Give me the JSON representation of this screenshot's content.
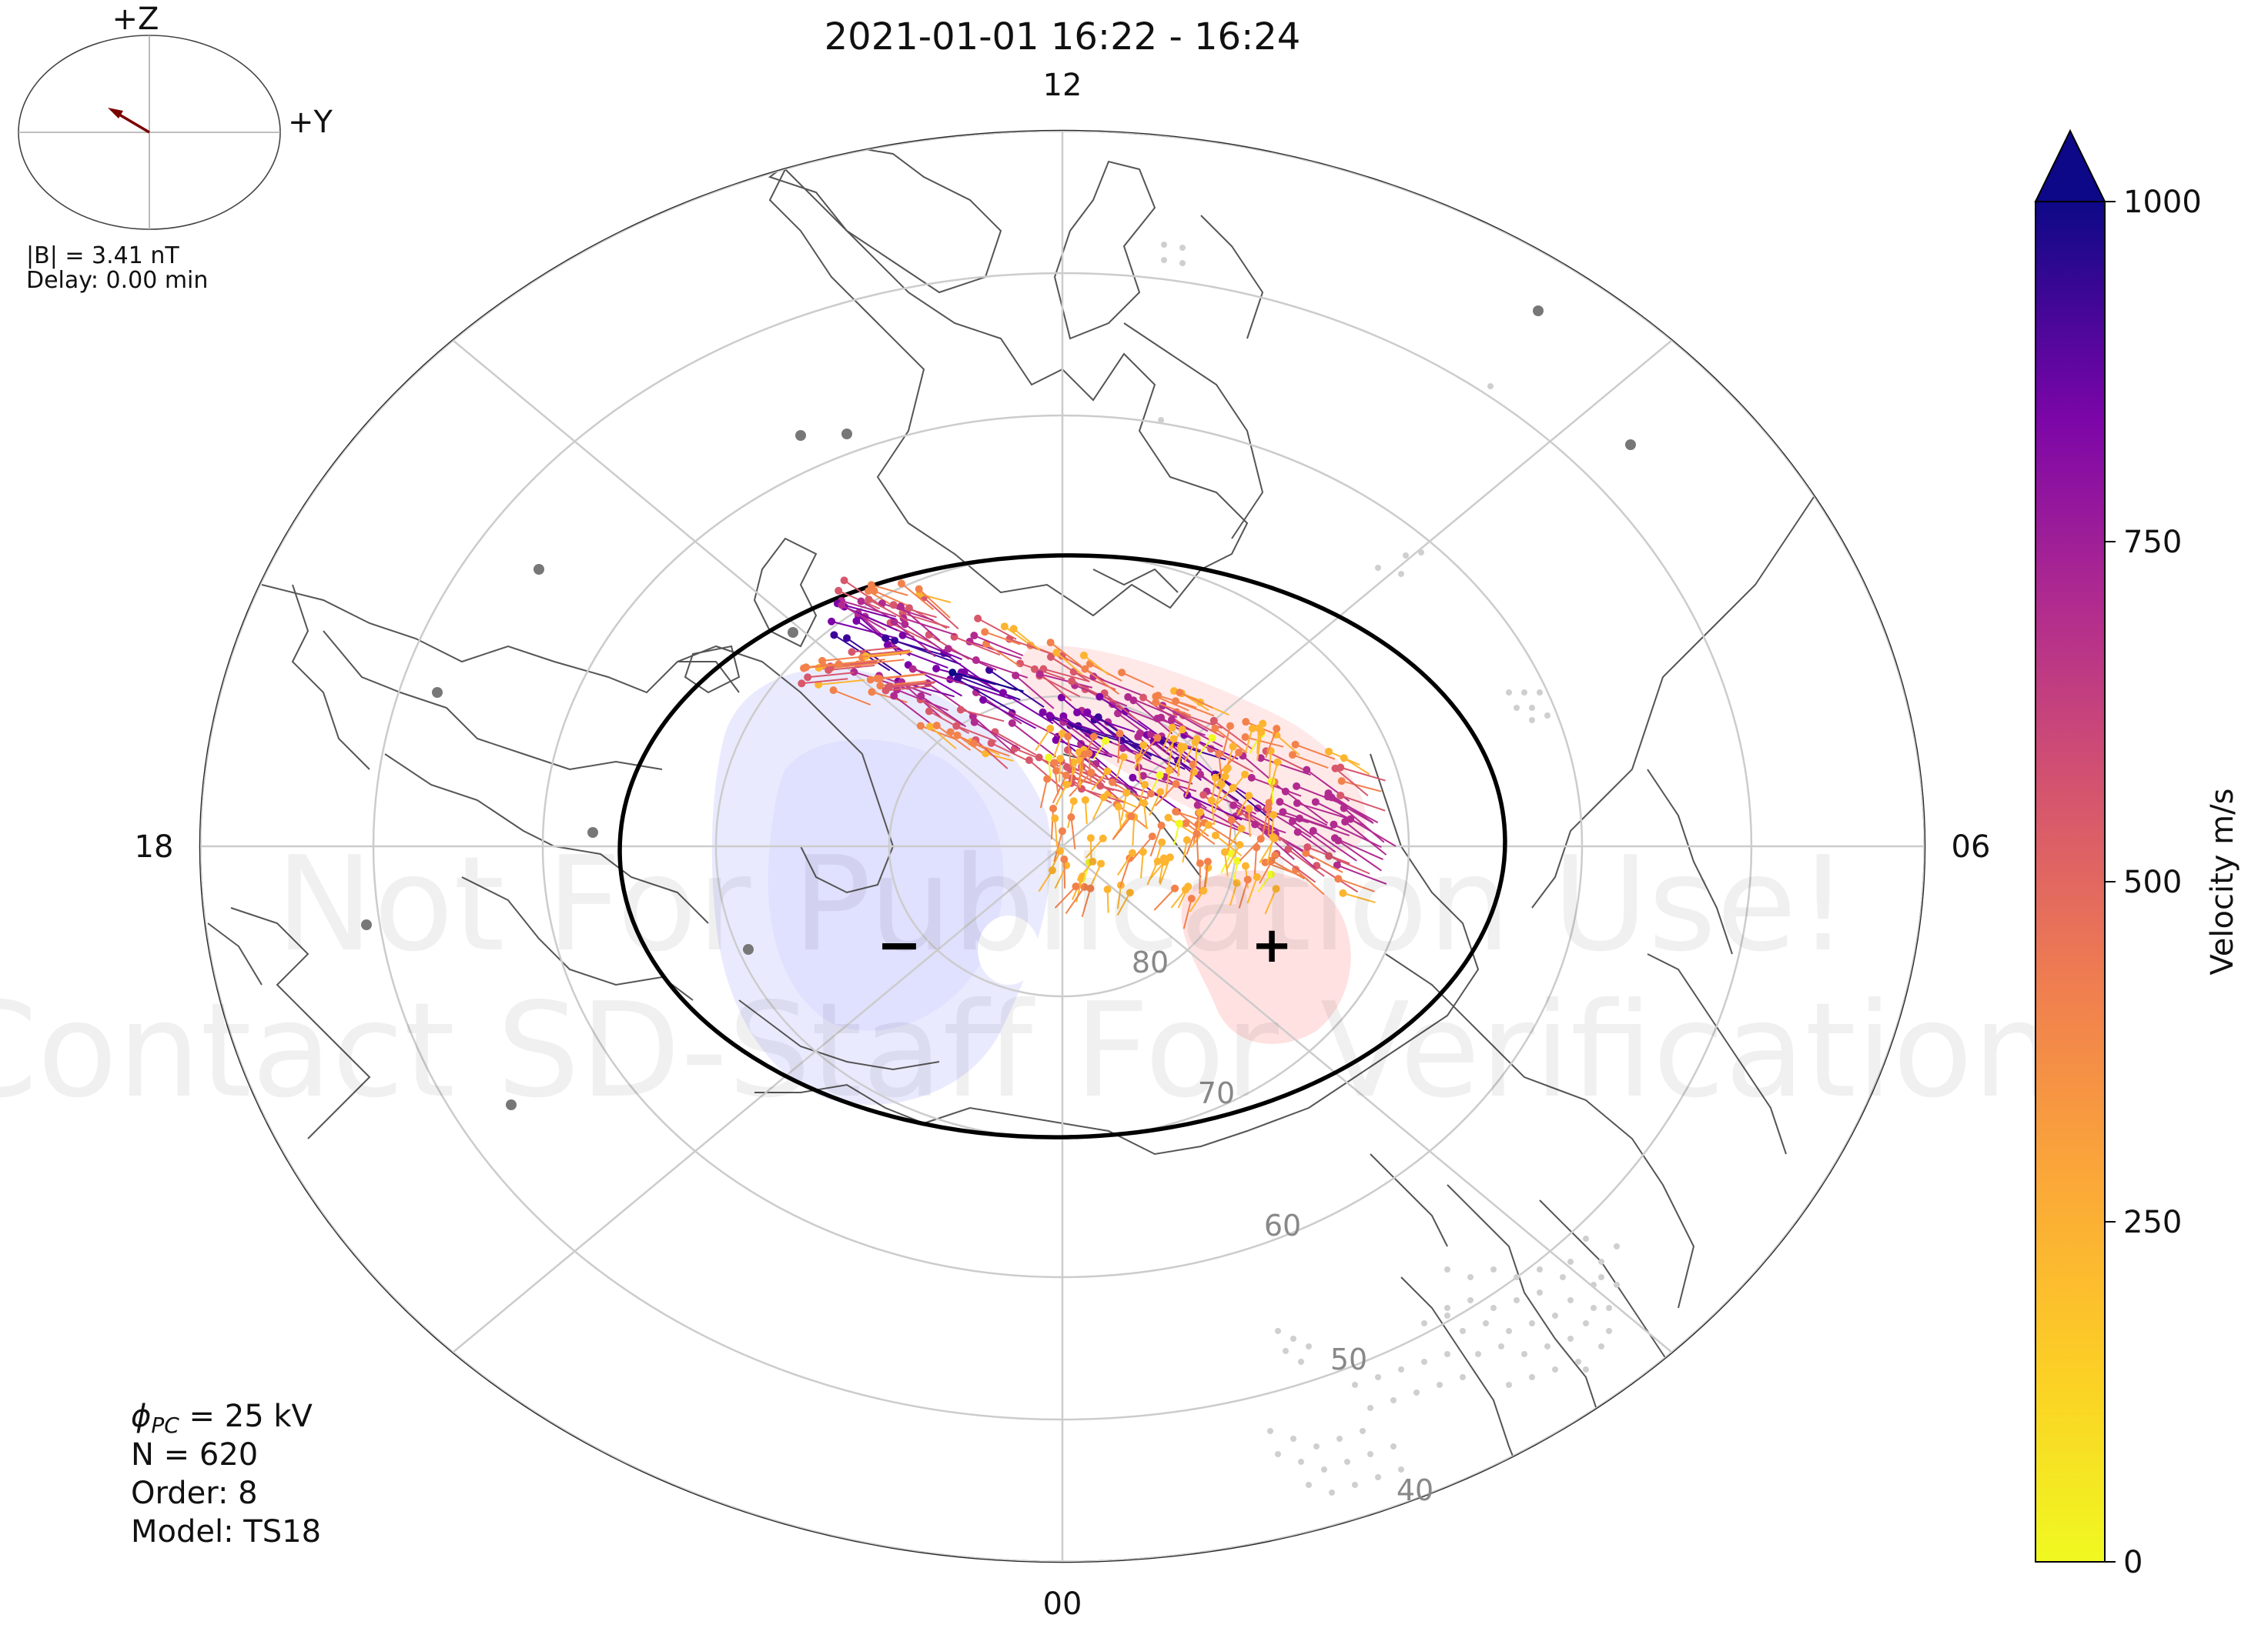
{
  "title": "2021-01-01 16:22 - 16:24",
  "mlt_labels": {
    "top": "12",
    "bottom": "00",
    "left": "18",
    "right": "06"
  },
  "lat_labels": [
    "80",
    "70",
    "60",
    "50",
    "40"
  ],
  "imf_dial": {
    "z_label": "+Z",
    "y_label": "+Y",
    "b_text": "|B| = 3.41 nT",
    "delay_text": "Delay: 0.00 min",
    "arrow_color": "#7a0000"
  },
  "stats": {
    "phi_prefix": "ϕ",
    "phi_sub": "PC",
    "phi_value": " = 25 kV",
    "n": "N = 620",
    "order": "Order: 8",
    "model": "Model: TS18"
  },
  "symbols": {
    "minus": "−",
    "plus": "+"
  },
  "watermark": {
    "line1": "Not For Publication Use!",
    "line2": "Contact SD-Staff For Verification"
  },
  "colorbar": {
    "label": "Velocity m/s",
    "ticks": [
      "0",
      "250",
      "500",
      "750",
      "1000"
    ],
    "min": 0,
    "max": 1000,
    "colors": [
      "#f0f921",
      "#fdb42f",
      "#f3814b",
      "#d8576b",
      "#b12a90",
      "#7c02a8",
      "#3b049a",
      "#0d0887"
    ]
  },
  "convection": {
    "negative_cell_color": "#d8d8ff",
    "positive_cell_color": "#ffdede"
  }
}
